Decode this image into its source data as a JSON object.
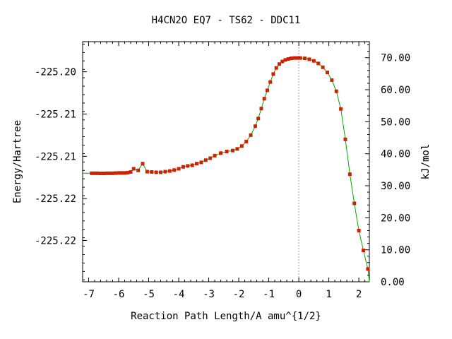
{
  "chart_data": {
    "type": "line",
    "title": "H4CN2O   EQ7 - TS62 - DDC11",
    "xlabel": "Reaction Path Length/A amu^{1/2}",
    "ylabel": "Energy/Hartree",
    "y2label": "kJ/mol",
    "xlim": [
      -7.2,
      2.35
    ],
    "ylim": [
      0,
      75
    ],
    "x_ticks": [
      "-7",
      "-6",
      "-5",
      "-4",
      "-3",
      "-2",
      "-1",
      "0",
      "1",
      "2"
    ],
    "y_left_ticks": [
      {
        "label": "-225.20",
        "kj": 65.6
      },
      {
        "label": "-225.21",
        "kj": 52.4
      },
      {
        "label": "-225.21",
        "kj": 39.2
      },
      {
        "label": "-225.22",
        "kj": 26.0
      },
      {
        "label": "-225.22",
        "kj": 12.9
      }
    ],
    "y_right_ticks": [
      "0.00",
      "10.00",
      "20.00",
      "30.00",
      "40.00",
      "50.00",
      "60.00",
      "70.00"
    ],
    "ts_x": 0.0,
    "line_color": "#00aa00",
    "marker_color": "#cc2200",
    "series": [
      {
        "x": [
          -6.9,
          -6.8,
          -6.7,
          -6.6,
          -6.5,
          -6.4,
          -6.3,
          -6.2,
          -6.1,
          -6.0,
          -5.9,
          -5.8,
          -5.7,
          -5.6,
          -5.5,
          -5.35,
          -5.2,
          -5.05,
          -4.9,
          -4.75,
          -4.6,
          -4.45,
          -4.3,
          -4.15,
          -4.0,
          -3.85,
          -3.7,
          -3.55,
          -3.4,
          -3.25,
          -3.1,
          -2.95,
          -2.8,
          -2.6,
          -2.4,
          -2.2,
          -2.05,
          -1.9,
          -1.75,
          -1.6,
          -1.45,
          -1.35,
          -1.25,
          -1.15,
          -1.05,
          -0.95,
          -0.85,
          -0.75,
          -0.65,
          -0.55,
          -0.45,
          -0.35,
          -0.25,
          -0.15,
          -0.05,
          0.05,
          0.2,
          0.35,
          0.5,
          0.65,
          0.8,
          0.95,
          1.1,
          1.25,
          1.4,
          1.55,
          1.7,
          1.85,
          2.0,
          2.15,
          2.3
        ],
        "y": [
          33.9,
          33.9,
          33.9,
          33.85,
          33.85,
          33.9,
          33.9,
          33.9,
          33.95,
          34.0,
          34.0,
          34.0,
          34.1,
          34.3,
          35.3,
          34.8,
          36.9,
          34.4,
          34.3,
          34.2,
          34.2,
          34.4,
          34.6,
          34.9,
          35.3,
          35.9,
          36.2,
          36.4,
          36.9,
          37.3,
          38.0,
          38.6,
          39.4,
          40.2,
          40.7,
          41.0,
          41.5,
          42.4,
          43.8,
          45.8,
          48.6,
          51.0,
          54.1,
          57.2,
          59.8,
          62.4,
          64.9,
          66.8,
          68.0,
          68.8,
          69.3,
          69.6,
          69.8,
          69.9,
          69.9,
          69.9,
          69.8,
          69.5,
          69.0,
          68.2,
          67.0,
          65.4,
          63.0,
          59.5,
          54.0,
          44.5,
          33.6,
          24.5,
          16.0,
          9.8,
          4.0
        ]
      }
    ]
  }
}
